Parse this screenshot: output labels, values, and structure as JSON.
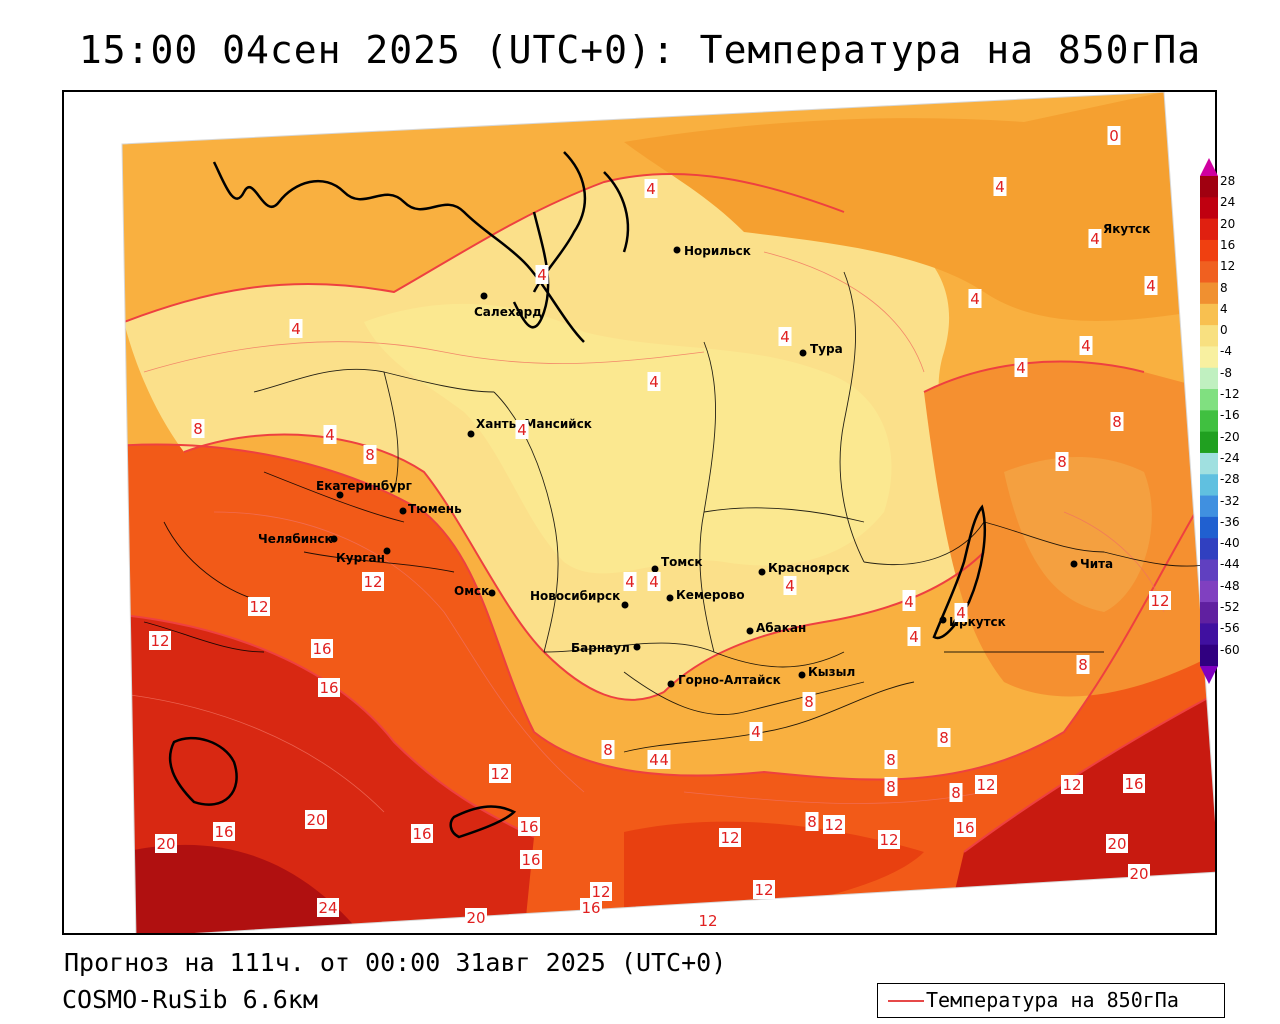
{
  "title": "15:00 04сен 2025 (UTC+0): Температура на 850гПа",
  "footer": {
    "forecast": "Прогноз на 111ч. от 00:00 31авг 2025 (UTC+0)",
    "model": "COSMO-RuSib 6.6км"
  },
  "legend": {
    "label": "Температура на 850гПа",
    "line_color": "#e64848"
  },
  "colorbar": {
    "ticks": [
      "28",
      "24",
      "20",
      "16",
      "12",
      "8",
      "4",
      "0",
      "-4",
      "-8",
      "-12",
      "-16",
      "-20",
      "-24",
      "-28",
      "-32",
      "-36",
      "-40",
      "-44",
      "-48",
      "-52",
      "-56",
      "-60"
    ],
    "colors": [
      "#a00010",
      "#c00010",
      "#e02010",
      "#f04010",
      "#f06020",
      "#f09030",
      "#f8c050",
      "#f8e080",
      "#f8f0a0",
      "#c0f0c0",
      "#80e080",
      "#40c040",
      "#20a020",
      "#a0e0e0",
      "#60c0e0",
      "#4090e0",
      "#2060d0",
      "#3040c0",
      "#6040c0",
      "#8040c0",
      "#6020a0",
      "#4010a0",
      "#300080"
    ],
    "top_arrow_color": "#d000a0",
    "bottom_arrow_color": "#8000c0"
  },
  "cities": [
    {
      "name": "Норильск"
    },
    {
      "name": "Якутск"
    },
    {
      "name": "Салехард"
    },
    {
      "name": "Тура"
    },
    {
      "name": "Ханты-Мансийск"
    },
    {
      "name": "Екатеринбург"
    },
    {
      "name": "Тюмень"
    },
    {
      "name": "Челябинск"
    },
    {
      "name": "Курган"
    },
    {
      "name": "Омск"
    },
    {
      "name": "Новосибирск"
    },
    {
      "name": "Томск"
    },
    {
      "name": "Кемерово"
    },
    {
      "name": "Красноярск"
    },
    {
      "name": "Барнаул"
    },
    {
      "name": "Абакан"
    },
    {
      "name": "Горно-Алтайск"
    },
    {
      "name": "Кызыл"
    },
    {
      "name": "Иркутск"
    },
    {
      "name": "Чита"
    }
  ],
  "contour_labels": [
    "4",
    "4",
    "4",
    "4",
    "4",
    "4",
    "4",
    "4",
    "4",
    "4",
    "4",
    "4",
    "4",
    "4",
    "4",
    "4",
    "4",
    "4",
    "4",
    "4",
    "4",
    "4",
    "4",
    "0",
    "8",
    "8",
    "8",
    "8",
    "8",
    "8",
    "8",
    "8",
    "8",
    "8",
    "8",
    "8",
    "12",
    "12",
    "12",
    "12",
    "12",
    "12",
    "12",
    "12",
    "12",
    "12",
    "12",
    "12",
    "12",
    "16",
    "16",
    "16",
    "16",
    "16",
    "16",
    "16",
    "16",
    "16",
    "20",
    "20",
    "20",
    "20",
    "20",
    "24"
  ]
}
